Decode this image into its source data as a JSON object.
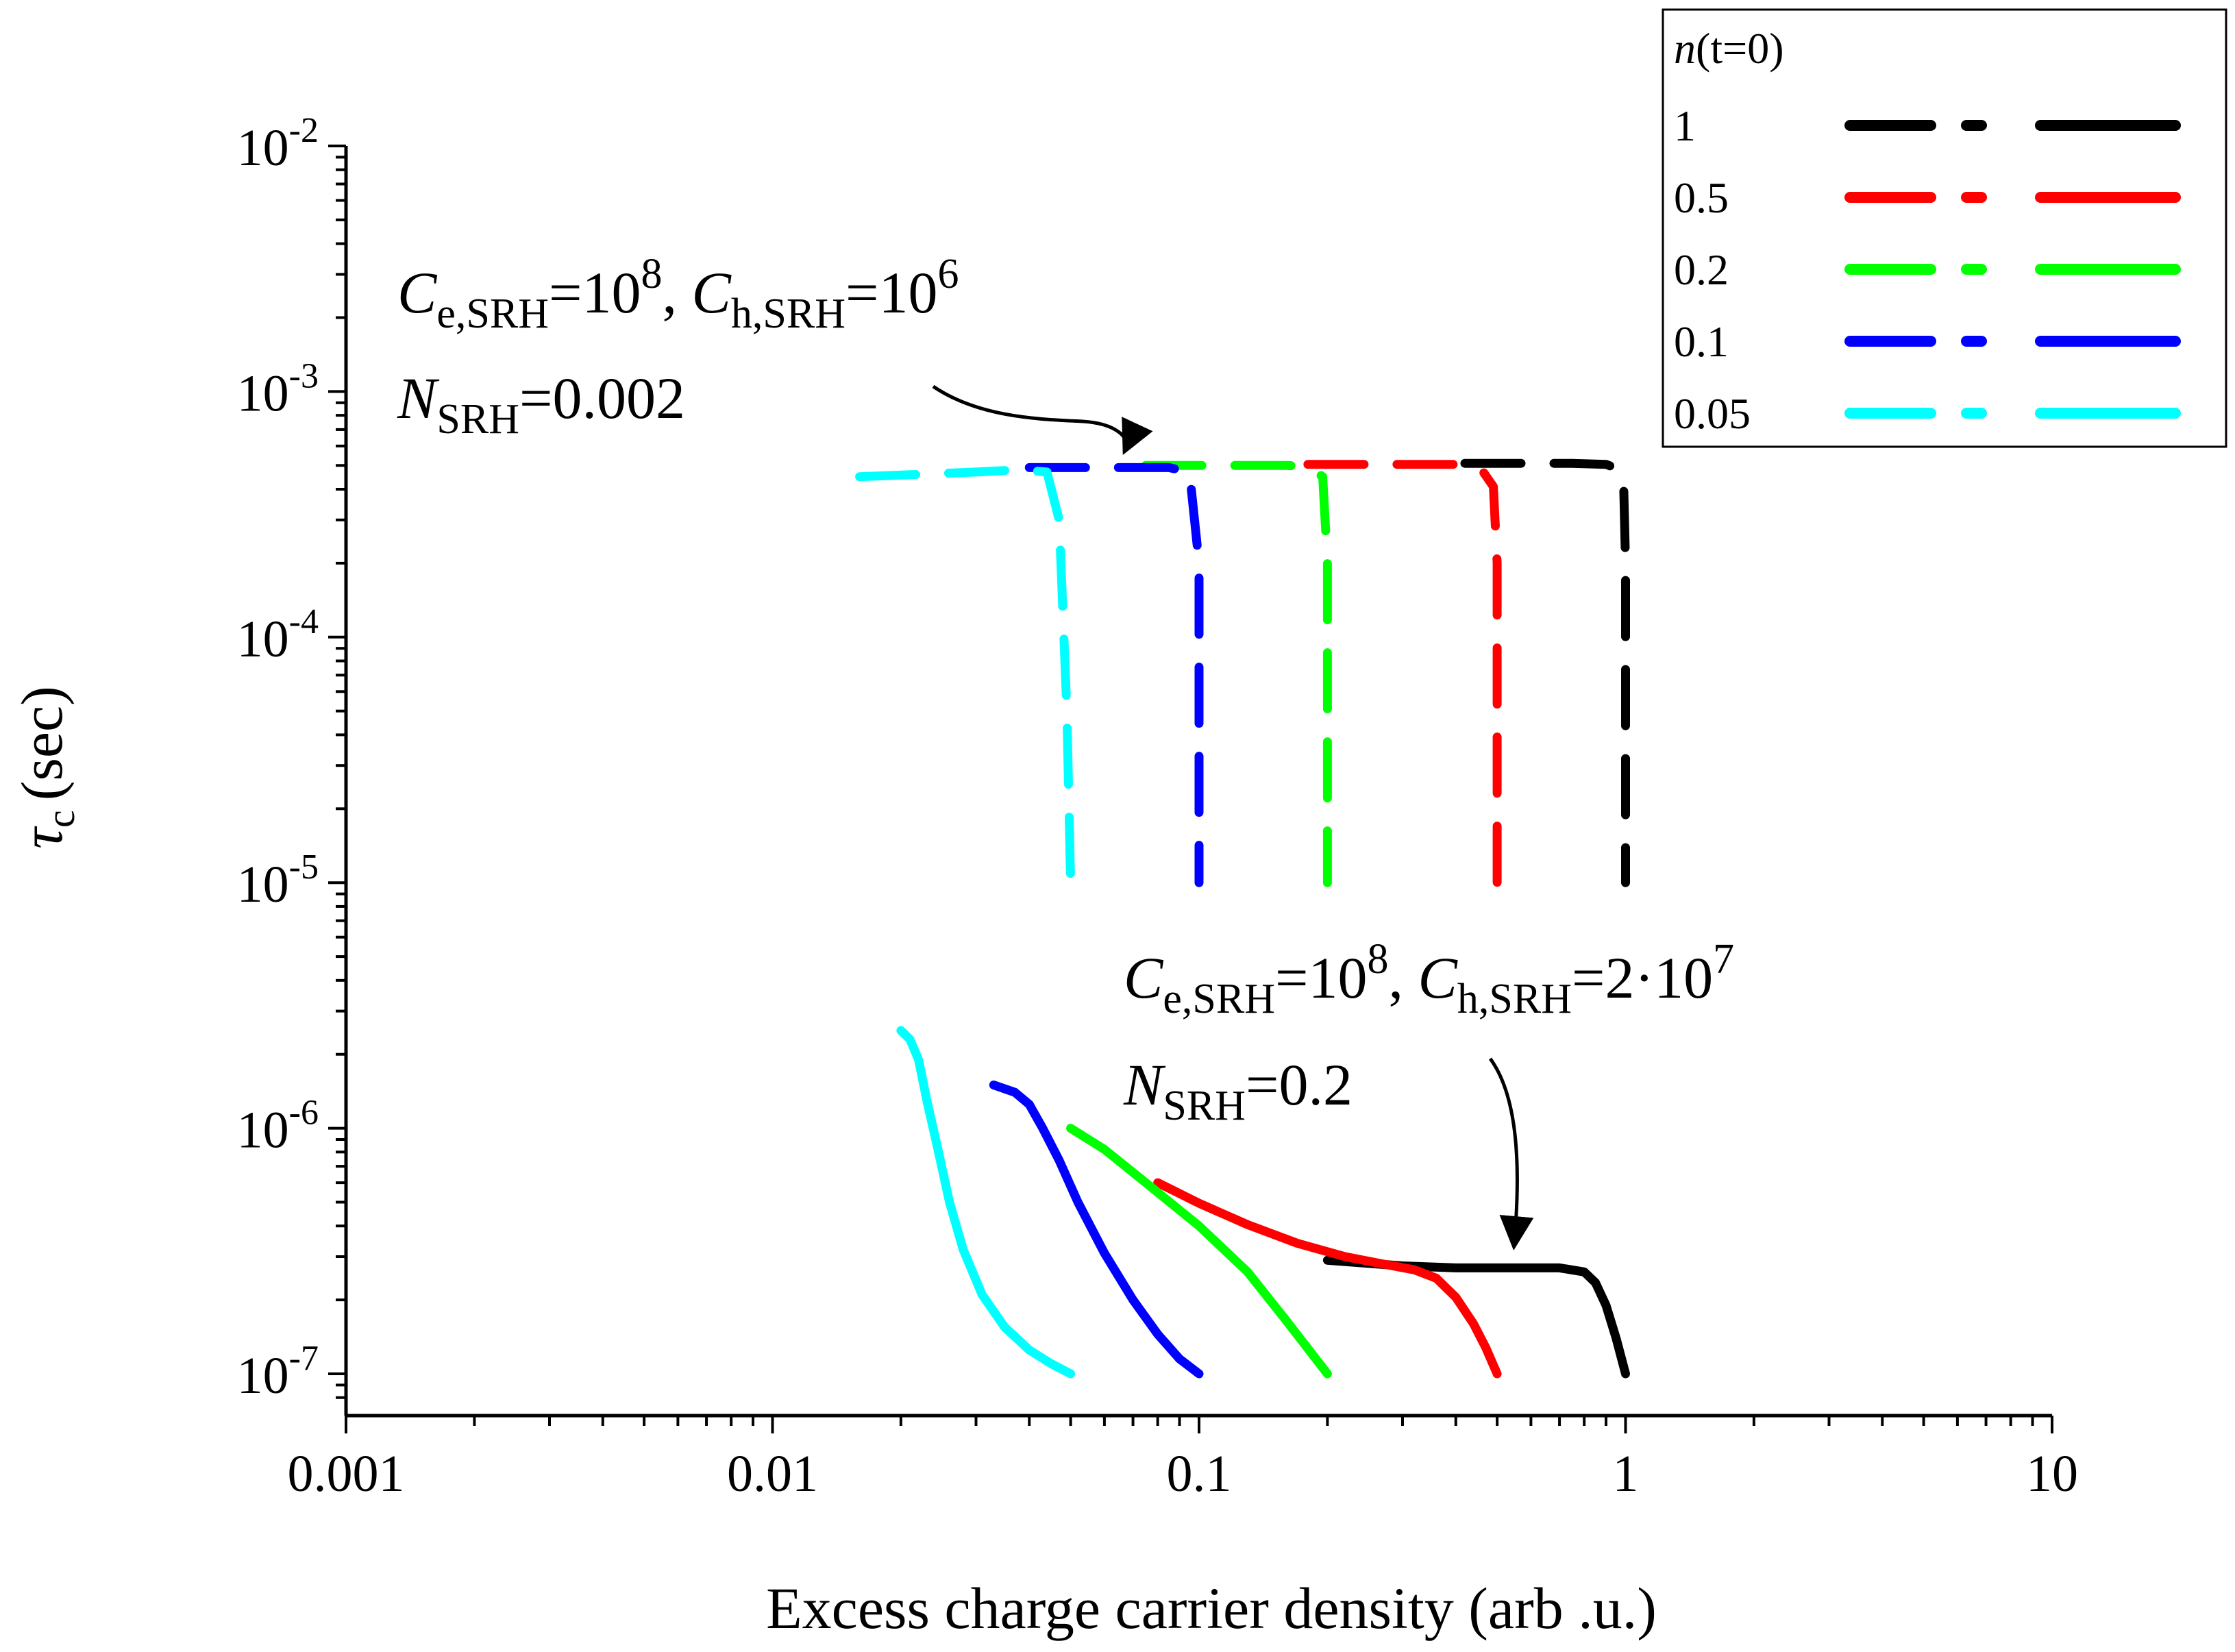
{
  "chart_data": {
    "type": "line",
    "x_scale": "log",
    "y_scale": "log",
    "xlim": [
      0.001,
      10
    ],
    "ylim_log10": [
      -7.15,
      -2
    ],
    "xlabel": "Excess charge carrier density (arb .u.)",
    "ylabel": {
      "symbol": "τ",
      "subscript": "c",
      "unit": "(sec)"
    },
    "x_ticks": [
      {
        "value": 0.001,
        "label": "0.001"
      },
      {
        "value": 0.01,
        "label": "0.01"
      },
      {
        "value": 0.1,
        "label": "0.1"
      },
      {
        "value": 1,
        "label": "1"
      },
      {
        "value": 10,
        "label": "10"
      }
    ],
    "y_ticks": [
      {
        "value": 0.01,
        "base": "10",
        "exp": "-2"
      },
      {
        "value": 0.001,
        "base": "10",
        "exp": "-3"
      },
      {
        "value": 0.0001,
        "base": "10",
        "exp": "-4"
      },
      {
        "value": 1e-05,
        "base": "10",
        "exp": "-5"
      },
      {
        "value": 1e-06,
        "base": "10",
        "exp": "-6"
      },
      {
        "value": 1e-07,
        "base": "10",
        "exp": "-7"
      }
    ],
    "legend": {
      "title_italic": "n",
      "title_rest": "(t=0)",
      "position": "top-right"
    },
    "series": [
      {
        "name": "1",
        "color": "#000000",
        "dashed": {
          "x": [
            0.42,
            0.5,
            0.6,
            0.75,
            0.9,
            0.97,
            0.99,
            1.0,
            1.0,
            1.0
          ],
          "y": [
            0.00051,
            0.00051,
            0.00051,
            0.00051,
            0.000505,
            0.00048,
            0.00041,
            0.0002,
            5e-05,
            1e-05
          ]
        },
        "solid": {
          "x": [
            0.2,
            0.3,
            0.4,
            0.5,
            0.6,
            0.7,
            0.8,
            0.85,
            0.9,
            0.95,
            1.0
          ],
          "y": [
            2.9e-07,
            2.75e-07,
            2.7e-07,
            2.7e-07,
            2.7e-07,
            2.7e-07,
            2.6e-07,
            2.35e-07,
            1.9e-07,
            1.4e-07,
            1e-07
          ]
        }
      },
      {
        "name": "0.5",
        "color": "#ff0000",
        "dashed": {
          "x": [
            0.18,
            0.25,
            0.3,
            0.35,
            0.4,
            0.46,
            0.49,
            0.5,
            0.5,
            0.5
          ],
          "y": [
            0.000505,
            0.000505,
            0.000505,
            0.000505,
            0.000505,
            0.00048,
            0.00041,
            0.0002,
            5e-05,
            1e-05
          ]
        },
        "solid": {
          "x": [
            0.08,
            0.1,
            0.13,
            0.17,
            0.22,
            0.27,
            0.32,
            0.36,
            0.4,
            0.44,
            0.47,
            0.5
          ],
          "y": [
            6e-07,
            4.95e-07,
            4.05e-07,
            3.4e-07,
            3e-07,
            2.8e-07,
            2.65e-07,
            2.45e-07,
            2.05e-07,
            1.6e-07,
            1.28e-07,
            1e-07
          ]
        }
      },
      {
        "name": "0.2",
        "color": "#00ff00",
        "dashed": {
          "x": [
            0.075,
            0.1,
            0.13,
            0.16,
            0.18,
            0.195,
            0.2,
            0.2,
            0.2
          ],
          "y": [
            0.0005,
            0.0005,
            0.0005,
            0.0005,
            0.000495,
            0.00045,
            0.0002,
            5e-05,
            1e-05
          ]
        },
        "solid": {
          "x": [
            0.05,
            0.06,
            0.075,
            0.1,
            0.13,
            0.16,
            0.2
          ],
          "y": [
            1e-06,
            8.2e-07,
            6e-07,
            4e-07,
            2.6e-07,
            1.65e-07,
            1e-07
          ]
        }
      },
      {
        "name": "0.1",
        "color": "#0000ff",
        "dashed": {
          "x": [
            0.04,
            0.055,
            0.07,
            0.085,
            0.095,
            0.1,
            0.1,
            0.1
          ],
          "y": [
            0.00049,
            0.00049,
            0.00049,
            0.00049,
            0.00047,
            0.0002,
            5e-05,
            1e-05
          ]
        },
        "solid": {
          "x": [
            0.033,
            0.037,
            0.04,
            0.043,
            0.047,
            0.052,
            0.06,
            0.07,
            0.08,
            0.09,
            0.1
          ],
          "y": [
            1.5e-06,
            1.4e-06,
            1.25e-06,
            1e-06,
            7.4e-07,
            5e-07,
            3.1e-07,
            2e-07,
            1.45e-07,
            1.15e-07,
            1e-07
          ]
        }
      },
      {
        "name": "0.05",
        "color": "#00ffff",
        "dashed": {
          "x": [
            0.016,
            0.022,
            0.03,
            0.038,
            0.044,
            0.047,
            0.049,
            0.05
          ],
          "y": [
            0.00045,
            0.00046,
            0.00047,
            0.00048,
            0.00047,
            0.0003,
            5e-05,
            1e-05
          ]
        },
        "solid": {
          "x": [
            0.02,
            0.021,
            0.022,
            0.023,
            0.0245,
            0.026,
            0.028,
            0.031,
            0.035,
            0.04,
            0.045,
            0.05
          ],
          "y": [
            2.5e-06,
            2.3e-06,
            1.9e-06,
            1.3e-06,
            8e-07,
            5e-07,
            3.2e-07,
            2.1e-07,
            1.55e-07,
            1.25e-07,
            1.1e-07,
            1e-07
          ]
        }
      }
    ],
    "annotations": [
      {
        "id": "upper",
        "line1": [
          {
            "t": "C",
            "style": "i"
          },
          {
            "t": "e,SRH",
            "style": "sub"
          },
          {
            "t": "=10"
          },
          {
            "t": "8",
            "style": "sup"
          },
          {
            "t": ", "
          },
          {
            "t": "C",
            "style": "i"
          },
          {
            "t": "h,SRH",
            "style": "sub"
          },
          {
            "t": "=10"
          },
          {
            "t": "6",
            "style": "sup"
          }
        ],
        "line2": [
          {
            "t": "N",
            "style": "i"
          },
          {
            "t": "SRH",
            "style": "sub"
          },
          {
            "t": "=0.002"
          }
        ]
      },
      {
        "id": "lower",
        "line1": [
          {
            "t": "C",
            "style": "i"
          },
          {
            "t": "e,SRH",
            "style": "sub"
          },
          {
            "t": "=10"
          },
          {
            "t": "8",
            "style": "sup"
          },
          {
            "t": ", "
          },
          {
            "t": "C",
            "style": "i"
          },
          {
            "t": "h,SRH",
            "style": "sub"
          },
          {
            "t": "=2·10"
          },
          {
            "t": "7",
            "style": "sup"
          }
        ],
        "line2": [
          {
            "t": "N",
            "style": "i"
          },
          {
            "t": "SRH",
            "style": "sub"
          },
          {
            "t": "=0.2"
          }
        ]
      }
    ]
  }
}
